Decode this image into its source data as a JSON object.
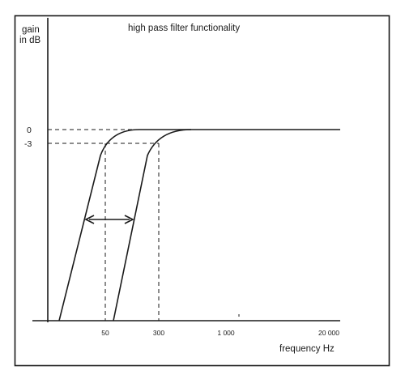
{
  "figure": {
    "title": "high pass filter functionality",
    "y_axis_label_line1": "gain",
    "y_axis_label_line2": "in dB",
    "x_axis_label": "frequency Hz",
    "gain_ticks": [
      "0",
      "-3"
    ],
    "frequency_ticks": [
      "50",
      "300",
      "1 000",
      "20 000"
    ]
  },
  "colors": {
    "ink": "#1a1a1a",
    "background": "#ffffff"
  }
}
